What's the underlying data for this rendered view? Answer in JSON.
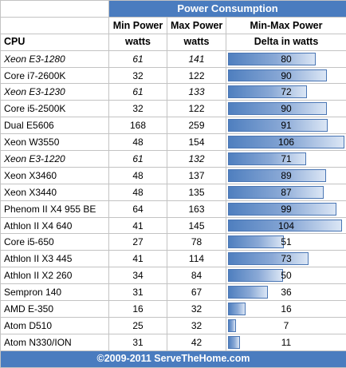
{
  "chart_data": {
    "type": "table",
    "title": "Power Consumption",
    "columns": [
      "CPU",
      "Min Power",
      "Max Power",
      "Min-Max Power"
    ],
    "units": [
      "",
      "watts",
      "watts",
      "Delta in watts"
    ],
    "bar_max": 106,
    "rows": [
      {
        "cpu": "Xeon E3-1280",
        "min": "61",
        "max": "141",
        "delta": 80,
        "italic": true
      },
      {
        "cpu": "Core i7-2600K",
        "min": "32",
        "max": "122",
        "delta": 90,
        "italic": false
      },
      {
        "cpu": "Xeon E3-1230",
        "min": "61",
        "max": "133",
        "delta": 72,
        "italic": true
      },
      {
        "cpu": "Core i5-2500K",
        "min": "32",
        "max": "122",
        "delta": 90,
        "italic": false
      },
      {
        "cpu": "Dual E5606",
        "min": "168",
        "max": "259",
        "delta": 91,
        "italic": false
      },
      {
        "cpu": "Xeon W3550",
        "min": "48",
        "max": "154",
        "delta": 106,
        "italic": false
      },
      {
        "cpu": "Xeon E3-1220",
        "min": "61",
        "max": "132",
        "delta": 71,
        "italic": true
      },
      {
        "cpu": "Xeon X3460",
        "min": "48",
        "max": "137",
        "delta": 89,
        "italic": false
      },
      {
        "cpu": "Xeon X3440",
        "min": "48",
        "max": "135",
        "delta": 87,
        "italic": false
      },
      {
        "cpu": "Phenom II X4 955 BE",
        "min": "64",
        "max": "163",
        "delta": 99,
        "italic": false
      },
      {
        "cpu": "Athlon II X4 640",
        "min": "41",
        "max": "145",
        "delta": 104,
        "italic": false
      },
      {
        "cpu": "Core i5-650",
        "min": "27",
        "max": "78",
        "delta": 51,
        "italic": false
      },
      {
        "cpu": "Athlon II X3 445",
        "min": "41",
        "max": "114",
        "delta": 73,
        "italic": false
      },
      {
        "cpu": "Athlon II X2 260",
        "min": "34",
        "max": "84",
        "delta": 50,
        "italic": false
      },
      {
        "cpu": "Sempron 140",
        "min": "31",
        "max": "67",
        "delta": 36,
        "italic": false
      },
      {
        "cpu": "AMD E-350",
        "min": "16",
        "max": "32",
        "delta": 16,
        "italic": false
      },
      {
        "cpu": "Atom D510",
        "min": "25",
        "max": "32",
        "delta": 7,
        "italic": false
      },
      {
        "cpu": "Atom N330/ION",
        "min": "31",
        "max": "42",
        "delta": 11,
        "italic": false
      }
    ],
    "footer": "©2009-2011 ServeTheHome.com"
  },
  "colors": {
    "header_bg": "#4a7cbf",
    "bar": "#4f7fbf",
    "grid": "#c3c3c3"
  }
}
